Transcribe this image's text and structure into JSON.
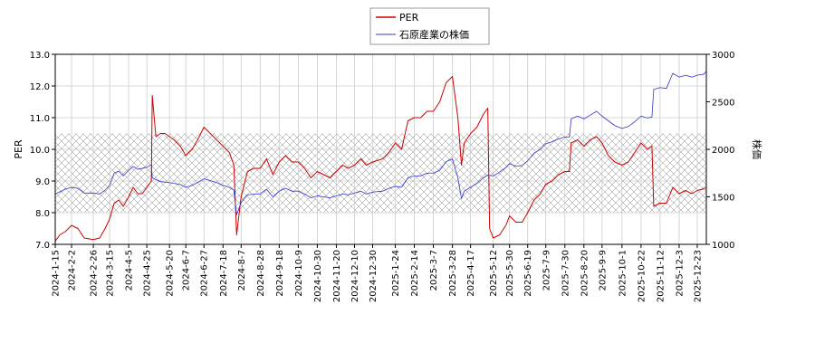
{
  "chart_data": {
    "type": "line",
    "legend": {
      "placement": "top-center"
    },
    "grid": true,
    "band": {
      "axis": "y_left",
      "range": [
        8.0,
        10.5
      ],
      "pattern": "crosshatch"
    },
    "x_ticks": [
      "2024-1-15",
      "2024-2-2",
      "2024-2-26",
      "2024-3-15",
      "2024-4-5",
      "2024-4-25",
      "2024-5-20",
      "2024-6-7",
      "2024-6-27",
      "2024-7-18",
      "2024-8-7",
      "2024-8-28",
      "2024-9-18",
      "2024-10-9",
      "2024-10-30",
      "2024-11-20",
      "2024-12-10",
      "2024-12-30",
      "2025-1-24",
      "2025-2-14",
      "2025-3-7",
      "2025-3-28",
      "2025-4-17",
      "2025-5-12",
      "2025-5-30",
      "2025-6-19",
      "2025-7-9",
      "2025-7-30",
      "2025-8-20",
      "2025-9-9",
      "2025-10-1",
      "2025-10-22",
      "2025-11-12",
      "2025-12-3",
      "2025-12-23"
    ],
    "x_range": [
      "2024-1-15",
      "2026-1-2"
    ],
    "y_left": {
      "label": "PER",
      "range": [
        7.0,
        13.0
      ],
      "ticks": [
        "7.0",
        "8.0",
        "9.0",
        "10.0",
        "11.0",
        "12.0",
        "13.0"
      ]
    },
    "y_right": {
      "label": "株価",
      "range": [
        1000,
        3000
      ],
      "ticks": [
        "1000",
        "1500",
        "2000",
        "2500",
        "3000"
      ]
    },
    "series": [
      {
        "name": "PER",
        "axis": "left",
        "color": "#cc0000",
        "points": [
          [
            "2024-1-15",
            7.1
          ],
          [
            "2024-1-20",
            7.3
          ],
          [
            "2024-1-26",
            7.4
          ],
          [
            "2024-2-2",
            7.6
          ],
          [
            "2024-2-9",
            7.5
          ],
          [
            "2024-2-16",
            7.2
          ],
          [
            "2024-2-26",
            7.15
          ],
          [
            "2024-3-4",
            7.2
          ],
          [
            "2024-3-10",
            7.5
          ],
          [
            "2024-3-15",
            7.8
          ],
          [
            "2024-3-20",
            8.3
          ],
          [
            "2024-3-25",
            8.4
          ],
          [
            "2024-3-30",
            8.2
          ],
          [
            "2024-4-5",
            8.5
          ],
          [
            "2024-4-10",
            8.8
          ],
          [
            "2024-4-15",
            8.6
          ],
          [
            "2024-4-20",
            8.6
          ],
          [
            "2024-4-25",
            8.8
          ],
          [
            "2024-4-30",
            9.0
          ],
          [
            "2024-5-1",
            11.7
          ],
          [
            "2024-5-5",
            10.4
          ],
          [
            "2024-5-10",
            10.5
          ],
          [
            "2024-5-15",
            10.5
          ],
          [
            "2024-5-20",
            10.4
          ],
          [
            "2024-5-25",
            10.3
          ],
          [
            "2024-6-1",
            10.1
          ],
          [
            "2024-6-7",
            9.8
          ],
          [
            "2024-6-14",
            10.0
          ],
          [
            "2024-6-20",
            10.3
          ],
          [
            "2024-6-27",
            10.7
          ],
          [
            "2024-7-4",
            10.5
          ],
          [
            "2024-7-11",
            10.3
          ],
          [
            "2024-7-18",
            10.1
          ],
          [
            "2024-7-25",
            9.9
          ],
          [
            "2024-7-30",
            9.5
          ],
          [
            "2024-8-2",
            7.3
          ],
          [
            "2024-8-7",
            8.5
          ],
          [
            "2024-8-14",
            9.3
          ],
          [
            "2024-8-21",
            9.4
          ],
          [
            "2024-8-28",
            9.4
          ],
          [
            "2024-9-4",
            9.7
          ],
          [
            "2024-9-11",
            9.2
          ],
          [
            "2024-9-18",
            9.6
          ],
          [
            "2024-9-25",
            9.8
          ],
          [
            "2024-10-2",
            9.6
          ],
          [
            "2024-10-9",
            9.6
          ],
          [
            "2024-10-16",
            9.4
          ],
          [
            "2024-10-23",
            9.1
          ],
          [
            "2024-10-30",
            9.3
          ],
          [
            "2024-11-6",
            9.2
          ],
          [
            "2024-11-13",
            9.1
          ],
          [
            "2024-11-20",
            9.3
          ],
          [
            "2024-11-27",
            9.5
          ],
          [
            "2024-12-3",
            9.4
          ],
          [
            "2024-12-10",
            9.5
          ],
          [
            "2024-12-17",
            9.7
          ],
          [
            "2024-12-23",
            9.5
          ],
          [
            "2024-12-30",
            9.6
          ],
          [
            "2025-1-10",
            9.7
          ],
          [
            "2025-1-17",
            9.9
          ],
          [
            "2025-1-24",
            10.2
          ],
          [
            "2025-1-31",
            10.0
          ],
          [
            "2025-2-7",
            10.9
          ],
          [
            "2025-2-14",
            11.0
          ],
          [
            "2025-2-21",
            11.0
          ],
          [
            "2025-2-28",
            11.2
          ],
          [
            "2025-3-7",
            11.2
          ],
          [
            "2025-3-14",
            11.5
          ],
          [
            "2025-3-21",
            12.1
          ],
          [
            "2025-3-28",
            12.3
          ],
          [
            "2025-4-3",
            11.0
          ],
          [
            "2025-4-7",
            9.5
          ],
          [
            "2025-4-10",
            10.2
          ],
          [
            "2025-4-17",
            10.5
          ],
          [
            "2025-4-24",
            10.7
          ],
          [
            "2025-5-1",
            11.1
          ],
          [
            "2025-5-6",
            11.3
          ],
          [
            "2025-5-8",
            7.5
          ],
          [
            "2025-5-12",
            7.2
          ],
          [
            "2025-5-19",
            7.3
          ],
          [
            "2025-5-26",
            7.6
          ],
          [
            "2025-5-30",
            7.9
          ],
          [
            "2025-6-6",
            7.7
          ],
          [
            "2025-6-13",
            7.7
          ],
          [
            "2025-6-19",
            8.0
          ],
          [
            "2025-6-26",
            8.4
          ],
          [
            "2025-7-3",
            8.6
          ],
          [
            "2025-7-9",
            8.9
          ],
          [
            "2025-7-16",
            9.0
          ],
          [
            "2025-7-23",
            9.2
          ],
          [
            "2025-7-30",
            9.3
          ],
          [
            "2025-8-4",
            9.3
          ],
          [
            "2025-8-6",
            10.2
          ],
          [
            "2025-8-13",
            10.3
          ],
          [
            "2025-8-20",
            10.1
          ],
          [
            "2025-8-27",
            10.3
          ],
          [
            "2025-9-3",
            10.4
          ],
          [
            "2025-9-9",
            10.2
          ],
          [
            "2025-9-16",
            9.8
          ],
          [
            "2025-9-23",
            9.6
          ],
          [
            "2025-10-1",
            9.5
          ],
          [
            "2025-10-8",
            9.6
          ],
          [
            "2025-10-15",
            9.9
          ],
          [
            "2025-10-22",
            10.2
          ],
          [
            "2025-10-29",
            10.0
          ],
          [
            "2025-11-3",
            10.1
          ],
          [
            "2025-11-5",
            8.2
          ],
          [
            "2025-11-12",
            8.3
          ],
          [
            "2025-11-19",
            8.3
          ],
          [
            "2025-11-26",
            8.8
          ],
          [
            "2025-12-3",
            8.6
          ],
          [
            "2025-12-10",
            8.7
          ],
          [
            "2025-12-17",
            8.6
          ],
          [
            "2025-12-23",
            8.7
          ],
          [
            "2025-12-30",
            8.75
          ],
          [
            "2026-1-2",
            8.8
          ]
        ]
      },
      {
        "name": "石原産業の株価",
        "axis": "right",
        "color": "#3333cc",
        "points": [
          [
            "2024-1-15",
            1530
          ],
          [
            "2024-1-26",
            1580
          ],
          [
            "2024-2-2",
            1600
          ],
          [
            "2024-2-9",
            1590
          ],
          [
            "2024-2-16",
            1540
          ],
          [
            "2024-2-26",
            1540
          ],
          [
            "2024-3-4",
            1530
          ],
          [
            "2024-3-10",
            1570
          ],
          [
            "2024-3-15",
            1620
          ],
          [
            "2024-3-20",
            1750
          ],
          [
            "2024-3-25",
            1770
          ],
          [
            "2024-3-30",
            1720
          ],
          [
            "2024-4-5",
            1780
          ],
          [
            "2024-4-10",
            1820
          ],
          [
            "2024-4-15",
            1790
          ],
          [
            "2024-4-25",
            1810
          ],
          [
            "2024-4-30",
            1840
          ],
          [
            "2024-5-1",
            1700
          ],
          [
            "2024-5-10",
            1660
          ],
          [
            "2024-5-20",
            1650
          ],
          [
            "2024-6-1",
            1630
          ],
          [
            "2024-6-7",
            1600
          ],
          [
            "2024-6-14",
            1620
          ],
          [
            "2024-6-20",
            1650
          ],
          [
            "2024-6-27",
            1690
          ],
          [
            "2024-7-4",
            1670
          ],
          [
            "2024-7-11",
            1650
          ],
          [
            "2024-7-18",
            1620
          ],
          [
            "2024-7-25",
            1600
          ],
          [
            "2024-7-30",
            1570
          ],
          [
            "2024-8-2",
            1310
          ],
          [
            "2024-8-7",
            1440
          ],
          [
            "2024-8-14",
            1520
          ],
          [
            "2024-8-21",
            1530
          ],
          [
            "2024-8-28",
            1530
          ],
          [
            "2024-9-4",
            1580
          ],
          [
            "2024-9-11",
            1500
          ],
          [
            "2024-9-18",
            1560
          ],
          [
            "2024-9-25",
            1590
          ],
          [
            "2024-10-2",
            1560
          ],
          [
            "2024-10-9",
            1560
          ],
          [
            "2024-10-16",
            1530
          ],
          [
            "2024-10-23",
            1490
          ],
          [
            "2024-10-30",
            1510
          ],
          [
            "2024-11-6",
            1500
          ],
          [
            "2024-11-13",
            1490
          ],
          [
            "2024-11-20",
            1510
          ],
          [
            "2024-11-27",
            1530
          ],
          [
            "2024-12-3",
            1520
          ],
          [
            "2024-12-10",
            1540
          ],
          [
            "2024-12-17",
            1560
          ],
          [
            "2024-12-23",
            1530
          ],
          [
            "2024-12-30",
            1550
          ],
          [
            "2025-1-10",
            1560
          ],
          [
            "2025-1-17",
            1590
          ],
          [
            "2025-1-24",
            1610
          ],
          [
            "2025-1-31",
            1600
          ],
          [
            "2025-2-7",
            1700
          ],
          [
            "2025-2-14",
            1720
          ],
          [
            "2025-2-21",
            1720
          ],
          [
            "2025-2-28",
            1750
          ],
          [
            "2025-3-7",
            1750
          ],
          [
            "2025-3-14",
            1780
          ],
          [
            "2025-3-21",
            1870
          ],
          [
            "2025-3-28",
            1900
          ],
          [
            "2025-4-3",
            1700
          ],
          [
            "2025-4-7",
            1480
          ],
          [
            "2025-4-10",
            1560
          ],
          [
            "2025-4-17",
            1600
          ],
          [
            "2025-4-24",
            1640
          ],
          [
            "2025-5-1",
            1700
          ],
          [
            "2025-5-6",
            1730
          ],
          [
            "2025-5-12",
            1720
          ],
          [
            "2025-5-19",
            1760
          ],
          [
            "2025-5-26",
            1810
          ],
          [
            "2025-5-30",
            1850
          ],
          [
            "2025-6-6",
            1820
          ],
          [
            "2025-6-13",
            1830
          ],
          [
            "2025-6-19",
            1880
          ],
          [
            "2025-6-26",
            1960
          ],
          [
            "2025-7-3",
            2000
          ],
          [
            "2025-7-9",
            2060
          ],
          [
            "2025-7-16",
            2080
          ],
          [
            "2025-7-23",
            2110
          ],
          [
            "2025-7-30",
            2130
          ],
          [
            "2025-8-4",
            2130
          ],
          [
            "2025-8-6",
            2320
          ],
          [
            "2025-8-13",
            2350
          ],
          [
            "2025-8-20",
            2320
          ],
          [
            "2025-8-27",
            2360
          ],
          [
            "2025-9-3",
            2400
          ],
          [
            "2025-9-9",
            2350
          ],
          [
            "2025-9-16",
            2300
          ],
          [
            "2025-9-23",
            2250
          ],
          [
            "2025-10-1",
            2220
          ],
          [
            "2025-10-8",
            2240
          ],
          [
            "2025-10-15",
            2290
          ],
          [
            "2025-10-22",
            2350
          ],
          [
            "2025-10-29",
            2330
          ],
          [
            "2025-11-3",
            2340
          ],
          [
            "2025-11-5",
            2630
          ],
          [
            "2025-11-12",
            2650
          ],
          [
            "2025-11-19",
            2640
          ],
          [
            "2025-11-26",
            2800
          ],
          [
            "2025-12-3",
            2760
          ],
          [
            "2025-12-10",
            2780
          ],
          [
            "2025-12-17",
            2760
          ],
          [
            "2025-12-23",
            2780
          ],
          [
            "2025-12-30",
            2790
          ],
          [
            "2026-1-2",
            2820
          ]
        ]
      }
    ]
  }
}
